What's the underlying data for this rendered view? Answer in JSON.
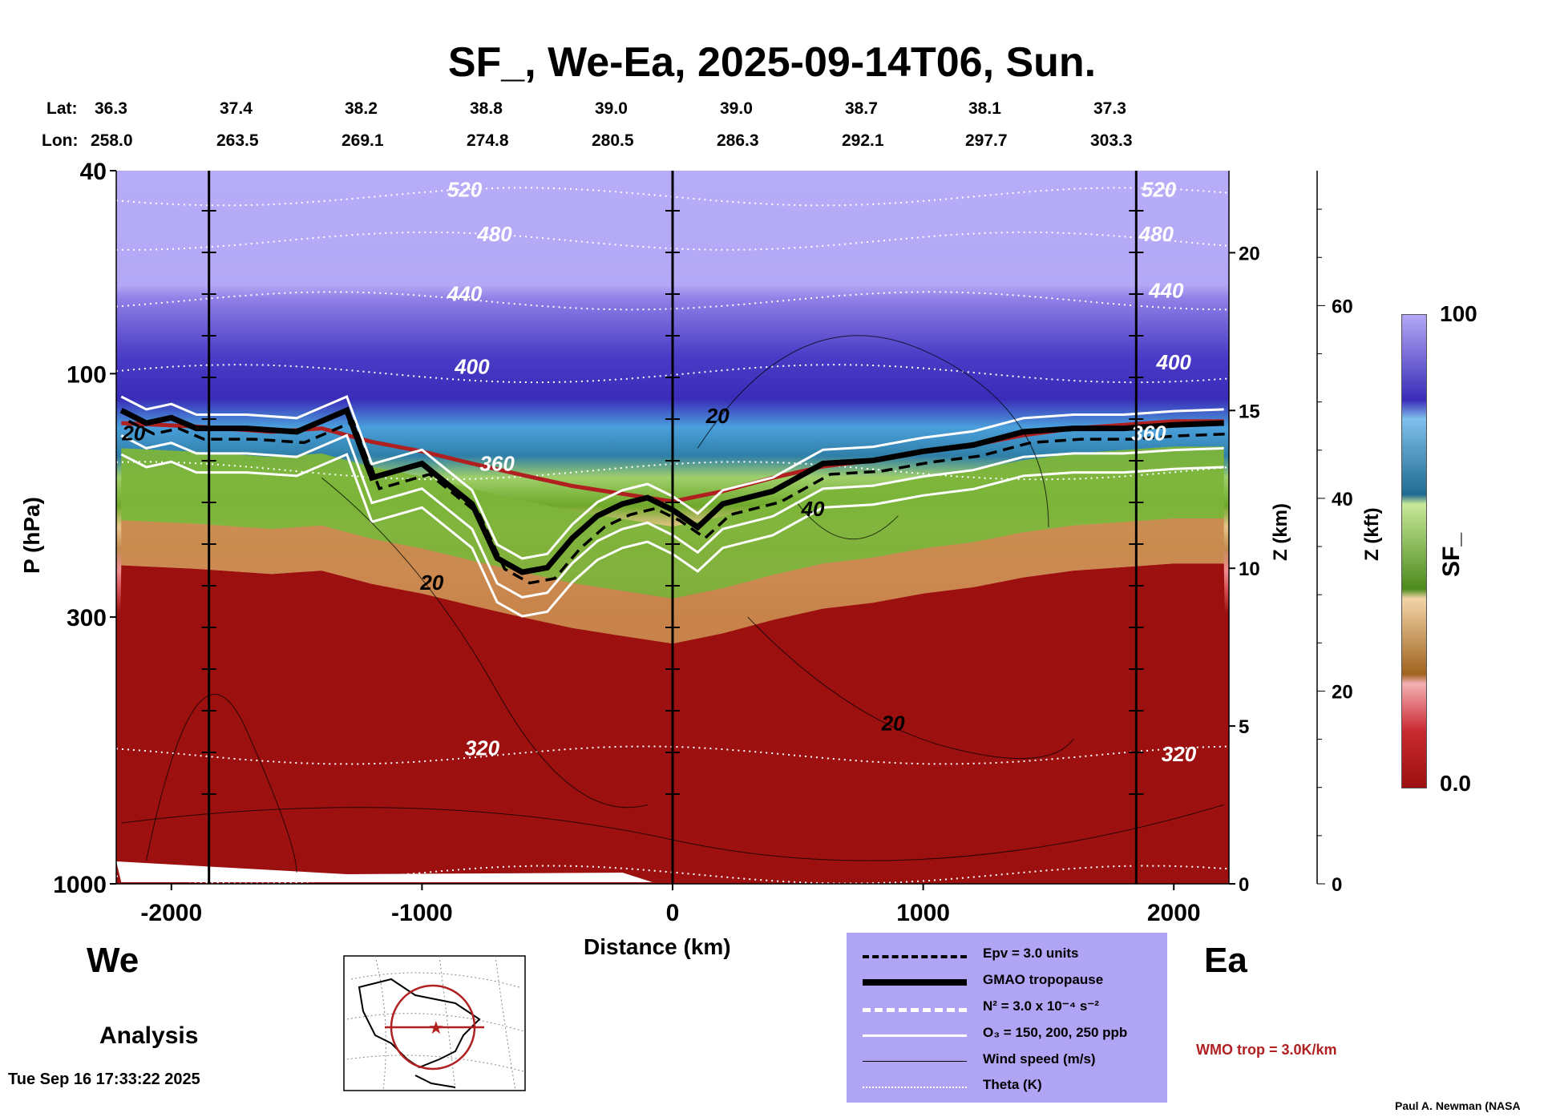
{
  "title": "SF_, We-Ea, 2025-09-14T06, Sun.",
  "header": {
    "lat_label": "Lat:",
    "lon_label": "Lon:",
    "lat": [
      "36.3",
      "37.4",
      "38.2",
      "38.8",
      "39.0",
      "39.0",
      "38.7",
      "38.1",
      "37.3"
    ],
    "lon": [
      "258.0",
      "263.5",
      "269.1",
      "274.8",
      "280.5",
      "286.3",
      "292.1",
      "297.7",
      "303.3"
    ]
  },
  "chart_data": {
    "type": "heatmap",
    "title": "SF_, We-Ea, 2025-09-14T06, Sun.",
    "xlabel": "Distance (km)",
    "ylabel": "P (hPa)",
    "y2label": "Z (km)",
    "y3label": "Z (kft)",
    "xlim": [
      -2220,
      2220
    ],
    "ylim": [
      1000,
      40
    ],
    "ylog": true,
    "x_ticks": [
      -2000,
      -1000,
      0,
      1000,
      2000
    ],
    "x_tick_labels": [
      "-2000",
      "-1000",
      "0",
      "1000",
      "2000"
    ],
    "y_ticks": [
      40,
      100,
      300,
      1000
    ],
    "y_tick_labels": [
      "40",
      "100",
      "300",
      "1000"
    ],
    "z_km_ticks": [
      0,
      5,
      10,
      15,
      20
    ],
    "z_kft_ticks": [
      0,
      20,
      40,
      60
    ],
    "vertical_markers_km": [
      -1850,
      0,
      1850
    ],
    "colorbar": {
      "label": "SF_",
      "min": "0.0",
      "max": "100"
    },
    "theta_labels": [
      {
        "text": "520",
        "x": -830,
        "p": 45
      },
      {
        "text": "480",
        "x": -710,
        "p": 55
      },
      {
        "text": "440",
        "x": -830,
        "p": 72
      },
      {
        "text": "400",
        "x": -800,
        "p": 100
      },
      {
        "text": "360",
        "x": -700,
        "p": 155
      },
      {
        "text": "320",
        "x": -760,
        "p": 560
      },
      {
        "text": "520",
        "x": 1940,
        "p": 45
      },
      {
        "text": "480",
        "x": 1930,
        "p": 55
      },
      {
        "text": "440",
        "x": 1970,
        "p": 71
      },
      {
        "text": "400",
        "x": 2000,
        "p": 98
      },
      {
        "text": "360",
        "x": 1900,
        "p": 135
      },
      {
        "text": "320",
        "x": 2020,
        "p": 575
      }
    ],
    "wind_labels": [
      {
        "text": "20",
        "x": -2150,
        "p": 135
      },
      {
        "text": "20",
        "x": -960,
        "p": 265
      },
      {
        "text": "20",
        "x": 180,
        "p": 125
      },
      {
        "text": "40",
        "x": 560,
        "p": 190
      },
      {
        "text": "20",
        "x": 880,
        "p": 500
      }
    ],
    "tropopause_p": [
      [
        -2200,
        118
      ],
      [
        -2100,
        125
      ],
      [
        -2000,
        122
      ],
      [
        -1900,
        128
      ],
      [
        -1700,
        128
      ],
      [
        -1500,
        130
      ],
      [
        -1300,
        118
      ],
      [
        -1200,
        160
      ],
      [
        -1000,
        150
      ],
      [
        -800,
        180
      ],
      [
        -700,
        230
      ],
      [
        -600,
        245
      ],
      [
        -500,
        240
      ],
      [
        -400,
        210
      ],
      [
        -300,
        190
      ],
      [
        -200,
        180
      ],
      [
        -100,
        175
      ],
      [
        0,
        185
      ],
      [
        100,
        200
      ],
      [
        200,
        180
      ],
      [
        400,
        170
      ],
      [
        600,
        150
      ],
      [
        800,
        148
      ],
      [
        1000,
        142
      ],
      [
        1200,
        138
      ],
      [
        1400,
        130
      ],
      [
        1600,
        128
      ],
      [
        1800,
        128
      ],
      [
        2000,
        126
      ],
      [
        2200,
        125
      ]
    ],
    "wmo_tropopause_p": [
      [
        -2200,
        125
      ],
      [
        -1900,
        127
      ],
      [
        -1600,
        130
      ],
      [
        -1400,
        128
      ],
      [
        -1200,
        136
      ],
      [
        -1000,
        142
      ],
      [
        -800,
        150
      ],
      [
        -600,
        158
      ],
      [
        -400,
        166
      ],
      [
        -200,
        172
      ],
      [
        0,
        178
      ],
      [
        200,
        170
      ],
      [
        400,
        160
      ],
      [
        600,
        152
      ],
      [
        800,
        148
      ],
      [
        1000,
        142
      ],
      [
        1200,
        138
      ],
      [
        1400,
        132
      ],
      [
        1600,
        128
      ],
      [
        1800,
        126
      ],
      [
        2000,
        124
      ],
      [
        2200,
        124
      ]
    ]
  },
  "legend": {
    "items": [
      {
        "style": "dashed-black",
        "label": "Epv = 3.0 units"
      },
      {
        "style": "thick-black",
        "label": "GMAO tropopause"
      },
      {
        "style": "dashed-white",
        "label": "N² = 3.0 x 10⁻⁴ s⁻²"
      },
      {
        "style": "solid-white",
        "label": "O₃ = 150, 200, 250 ppb"
      },
      {
        "style": "thin-black",
        "label": "Wind speed (m/s)"
      },
      {
        "style": "dotted-white",
        "label": "Theta (K)"
      }
    ]
  },
  "side_labels": {
    "west": "We",
    "east": "Ea",
    "analysis": "Analysis",
    "wmo": "WMO trop = 3.0K/km",
    "timestamp": "Tue Sep 16 17:33:22 2025",
    "credit": "Paul A. Newman (NASA"
  },
  "colors": {
    "wmo_line": "#b02020",
    "legend_bg": "#b0a4f4",
    "stratosphere_top": "#b3a8f5",
    "troposphere": "#9c1010"
  }
}
